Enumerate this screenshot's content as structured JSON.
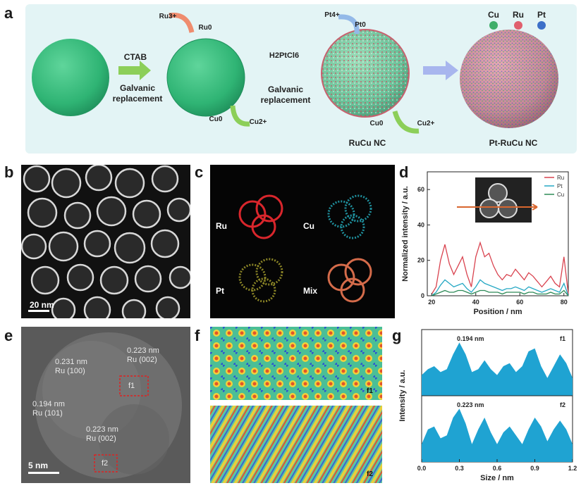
{
  "panel_a": {
    "letter": "a",
    "arrow1": {
      "top": "CTAB",
      "bottom": "Galvanic\nreplacement"
    },
    "ru_in": "Ru3+",
    "ru_out": "Ru0",
    "cu1_in": "Cu0",
    "cu1_out": "Cu2+",
    "arrow2": {
      "top": "H2PtCl6",
      "bottom": "Galvanic\nreplacement"
    },
    "pt_in": "Pt4+",
    "pt_out": "Pt0",
    "cu2_in": "Cu0",
    "cu2_out": "Cu2+",
    "label_rucu": "RuCu NC",
    "label_ptrucu": "Pt-RuCu NC",
    "legend": [
      {
        "name": "Cu",
        "color": "#3fae6a"
      },
      {
        "name": "Ru",
        "color": "#e0606e"
      },
      {
        "name": "Pt",
        "color": "#3c6fc8"
      }
    ]
  },
  "panel_b": {
    "letter": "b",
    "scale": "20 nm"
  },
  "panel_c": {
    "letter": "c",
    "maps": [
      "Ru",
      "Cu",
      "Pt",
      "Mix"
    ]
  },
  "panel_d": {
    "letter": "d"
  },
  "panel_e": {
    "letter": "e",
    "scale": "5 nm",
    "annotations": [
      {
        "text": "0.231 nm\nRu (100)"
      },
      {
        "text": "0.223 nm\nRu (002)"
      },
      {
        "text": "0.194 nm\nRu (101)"
      },
      {
        "text": "0.223 nm\nRu (002)"
      }
    ],
    "f1": "f1",
    "f2": "f2"
  },
  "panel_f": {
    "letter": "f",
    "label1": "f1",
    "label2": "f2"
  },
  "panel_g": {
    "letter": "g"
  },
  "chart_data": [
    {
      "type": "line",
      "panel": "d",
      "xlabel": "Position / nm",
      "ylabel": "Normalized intensity / a.u.",
      "xlim": [
        18,
        82
      ],
      "ylim": [
        0,
        70
      ],
      "xticks": [
        20,
        40,
        60,
        80
      ],
      "yticks": [
        0,
        20,
        40,
        60
      ],
      "legend_position": "top-right",
      "series": [
        {
          "name": "Ru",
          "color": "#d9434f",
          "x": [
            20,
            22,
            24,
            26,
            28,
            30,
            32,
            34,
            36,
            38,
            40,
            42,
            44,
            46,
            48,
            50,
            52,
            54,
            56,
            58,
            60,
            62,
            64,
            66,
            68,
            70,
            72,
            74,
            76,
            78,
            80,
            82
          ],
          "y": [
            1,
            5,
            20,
            29,
            18,
            12,
            17,
            22,
            12,
            5,
            22,
            30,
            22,
            24,
            17,
            12,
            9,
            12,
            11,
            15,
            12,
            9,
            13,
            11,
            8,
            5,
            8,
            11,
            7,
            5,
            22,
            1
          ]
        },
        {
          "name": "Pt",
          "color": "#26a8c4",
          "x": [
            20,
            22,
            24,
            26,
            28,
            30,
            32,
            34,
            36,
            38,
            40,
            42,
            44,
            46,
            48,
            50,
            52,
            54,
            56,
            58,
            60,
            62,
            64,
            66,
            68,
            70,
            72,
            74,
            76,
            78,
            80,
            82
          ],
          "y": [
            0,
            2,
            6,
            9,
            7,
            5,
            6,
            7,
            4,
            2,
            5,
            9,
            7,
            6,
            5,
            4,
            3,
            4,
            4,
            5,
            4,
            3,
            5,
            4,
            3,
            2,
            3,
            4,
            3,
            2,
            7,
            0
          ]
        },
        {
          "name": "Cu",
          "color": "#2d8a57",
          "x": [
            20,
            22,
            24,
            26,
            28,
            30,
            32,
            34,
            36,
            38,
            40,
            42,
            44,
            46,
            48,
            50,
            52,
            54,
            56,
            58,
            60,
            62,
            64,
            66,
            68,
            70,
            72,
            74,
            76,
            78,
            80,
            82
          ],
          "y": [
            0,
            1,
            2,
            3,
            2,
            2,
            3,
            3,
            2,
            1,
            2,
            3,
            3,
            2,
            2,
            2,
            1,
            2,
            2,
            2,
            2,
            1,
            2,
            2,
            1,
            1,
            1,
            2,
            1,
            1,
            3,
            0
          ]
        }
      ]
    },
    {
      "type": "area",
      "panel": "g",
      "xlabel": "Size / nm",
      "ylabel": "Intensity / a.u.",
      "xlim": [
        0.0,
        1.2
      ],
      "xticks": [
        0.0,
        0.3,
        0.6,
        0.9,
        1.2
      ],
      "color": "#1fa3d2",
      "series": [
        {
          "name": "f1",
          "annotation": "0.194 nm",
          "x": [
            0.0,
            0.05,
            0.1,
            0.15,
            0.2,
            0.25,
            0.3,
            0.35,
            0.4,
            0.45,
            0.5,
            0.55,
            0.6,
            0.65,
            0.7,
            0.75,
            0.8,
            0.85,
            0.9,
            0.95,
            1.0,
            1.05,
            1.1,
            1.15,
            1.2
          ],
          "y": [
            0.35,
            0.45,
            0.5,
            0.4,
            0.45,
            0.7,
            0.9,
            0.7,
            0.4,
            0.45,
            0.6,
            0.45,
            0.35,
            0.5,
            0.55,
            0.4,
            0.5,
            0.75,
            0.8,
            0.5,
            0.3,
            0.5,
            0.7,
            0.55,
            0.3
          ]
        },
        {
          "name": "f2",
          "annotation": "0.223 nm",
          "x": [
            0.0,
            0.05,
            0.1,
            0.15,
            0.2,
            0.25,
            0.3,
            0.35,
            0.4,
            0.45,
            0.5,
            0.55,
            0.6,
            0.65,
            0.7,
            0.75,
            0.8,
            0.85,
            0.9,
            0.95,
            1.0,
            1.05,
            1.1,
            1.15,
            1.2
          ],
          "y": [
            0.3,
            0.55,
            0.6,
            0.4,
            0.45,
            0.75,
            0.9,
            0.65,
            0.3,
            0.55,
            0.75,
            0.5,
            0.3,
            0.5,
            0.6,
            0.45,
            0.3,
            0.55,
            0.75,
            0.6,
            0.35,
            0.55,
            0.7,
            0.55,
            0.3
          ]
        }
      ]
    }
  ]
}
